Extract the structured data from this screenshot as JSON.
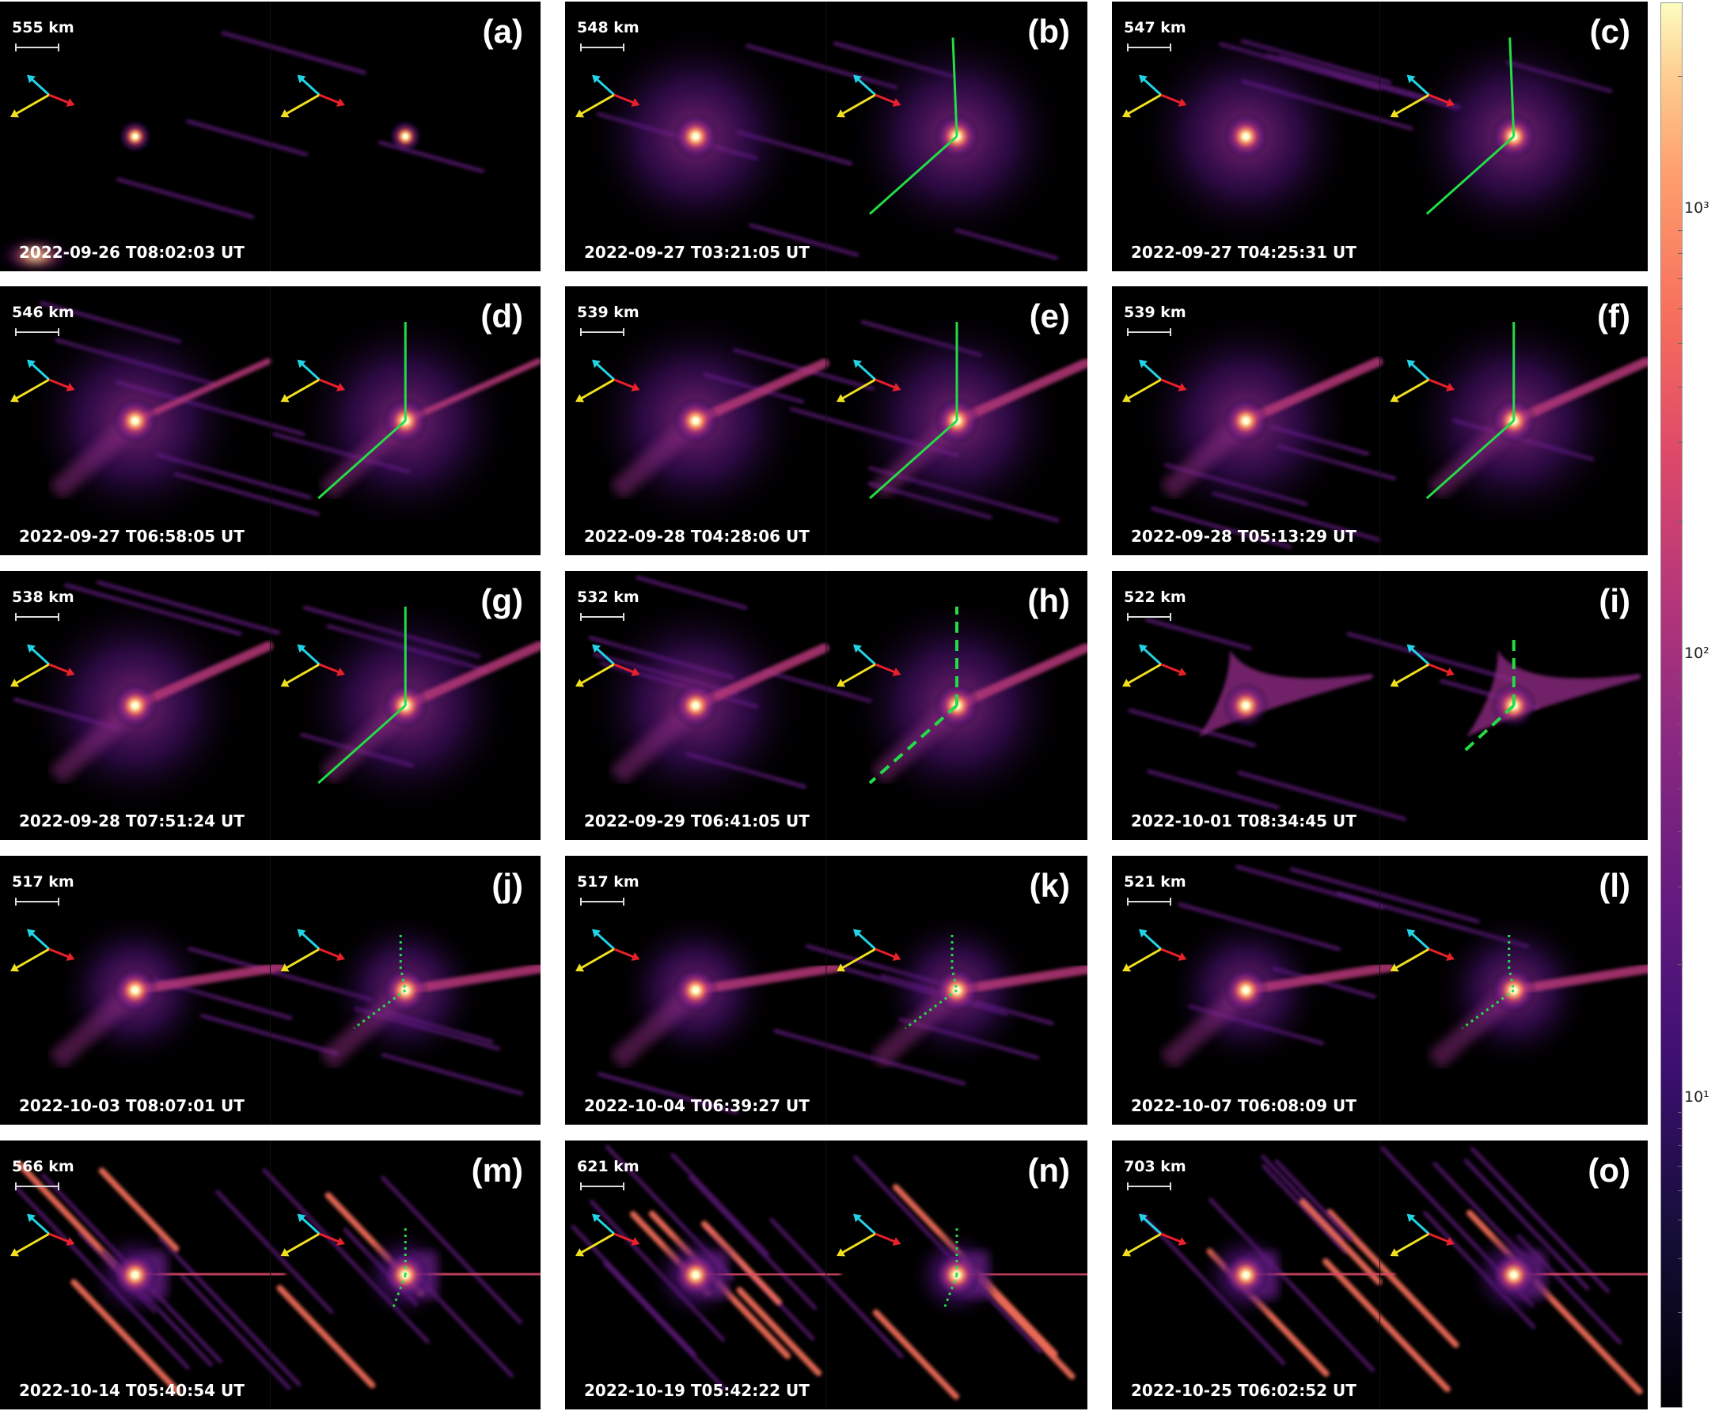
{
  "panels": [
    {
      "label": "(a)",
      "scale": "555 km",
      "timestamp": "2022-09-26 T08:02:03 UT",
      "guide": "none",
      "activity": "point"
    },
    {
      "label": "(b)",
      "scale": "548 km",
      "timestamp": "2022-09-27 T03:21:05 UT",
      "guide": "solid",
      "activity": "halo"
    },
    {
      "label": "(c)",
      "scale": "547 km",
      "timestamp": "2022-09-27 T04:25:31 UT",
      "guide": "solid",
      "activity": "halo"
    },
    {
      "label": "(d)",
      "scale": "546 km",
      "timestamp": "2022-09-27 T06:58:05 UT",
      "guide": "solid",
      "activity": "rays"
    },
    {
      "label": "(e)",
      "scale": "539 km",
      "timestamp": "2022-09-28 T04:28:06 UT",
      "guide": "solid",
      "activity": "tail"
    },
    {
      "label": "(f)",
      "scale": "539 km",
      "timestamp": "2022-09-28 T05:13:29 UT",
      "guide": "solid",
      "activity": "tail"
    },
    {
      "label": "(g)",
      "scale": "538 km",
      "timestamp": "2022-09-28 T07:51:24 UT",
      "guide": "solid",
      "activity": "tail"
    },
    {
      "label": "(h)",
      "scale": "532 km",
      "timestamp": "2022-09-29 T06:41:05 UT",
      "guide": "dashed",
      "activity": "tail"
    },
    {
      "label": "(i)",
      "scale": "522 km",
      "timestamp": "2022-10-01 T08:34:45 UT",
      "guide": "dashed",
      "activity": "compact"
    },
    {
      "label": "(j)",
      "scale": "517 km",
      "timestamp": "2022-10-03 T08:07:01 UT",
      "guide": "dotted",
      "activity": "tail2"
    },
    {
      "label": "(k)",
      "scale": "517 km",
      "timestamp": "2022-10-04 T06:39:27 UT",
      "guide": "dotted",
      "activity": "tail2"
    },
    {
      "label": "(l)",
      "scale": "521 km",
      "timestamp": "2022-10-07 T06:08:09 UT",
      "guide": "dotted",
      "activity": "tail2"
    },
    {
      "label": "(m)",
      "scale": "566 km",
      "timestamp": "2022-10-14 T05:40:54 UT",
      "guide": "dotted",
      "activity": "late"
    },
    {
      "label": "(n)",
      "scale": "621 km",
      "timestamp": "2022-10-19 T05:42:22 UT",
      "guide": "dotted",
      "activity": "late"
    },
    {
      "label": "(o)",
      "scale": "703 km",
      "timestamp": "2022-10-25 T06:02:52 UT",
      "guide": "none",
      "activity": "late"
    }
  ],
  "compass_colors": {
    "cyan": "#22d3e6",
    "yellow": "#f0e020",
    "red": "#e8202a"
  },
  "guide_color": "#22dd44",
  "colorbar": {
    "colormap": "magma",
    "scale": "log",
    "ticks": [
      {
        "label": "10³",
        "value": 1000
      },
      {
        "label": "10²",
        "value": 100
      },
      {
        "label": "10¹",
        "value": 10
      }
    ]
  }
}
